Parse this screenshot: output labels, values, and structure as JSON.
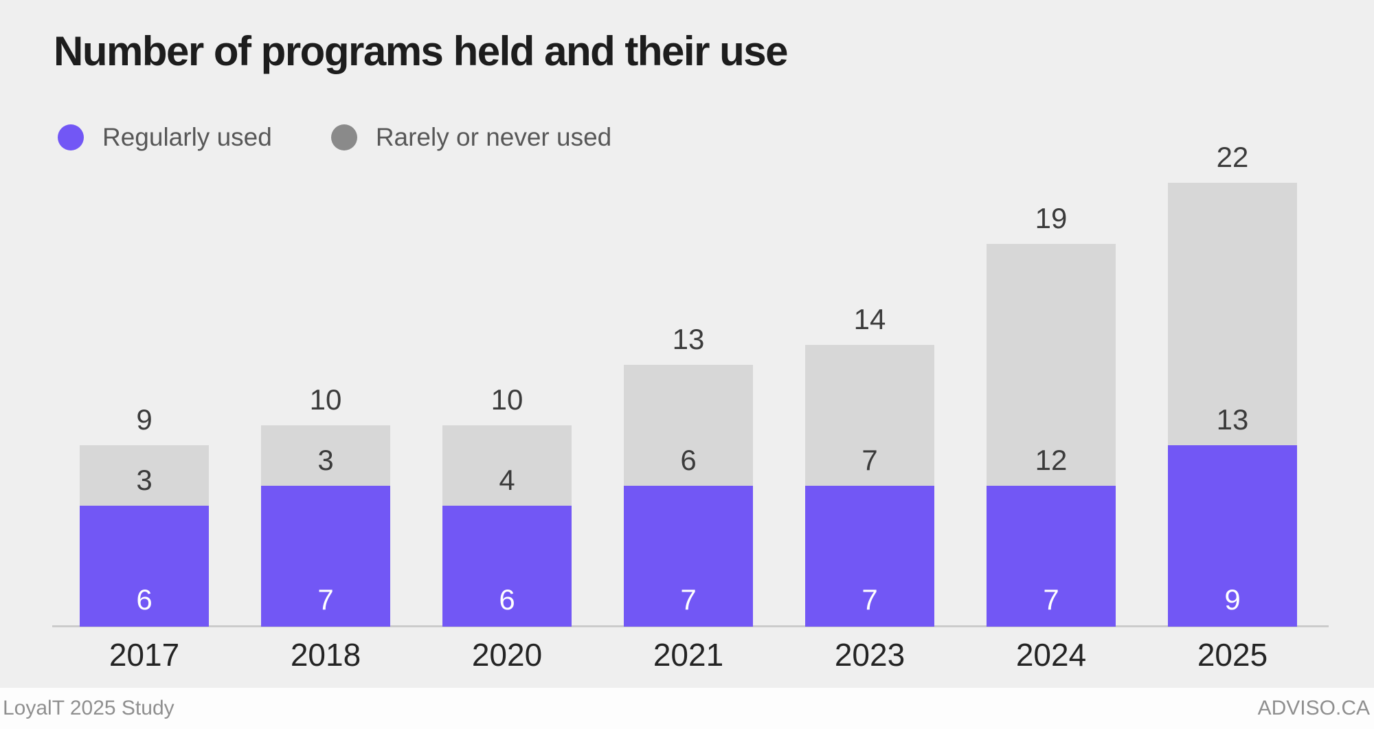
{
  "title": "Number of programs held and their use",
  "legend": {
    "items": [
      {
        "label": "Regularly used",
        "color": "#7257f5"
      },
      {
        "label": "Rarely or never used",
        "color": "#8a8a8a"
      }
    ]
  },
  "chart_data": {
    "type": "bar",
    "stacked": true,
    "title": "Number of programs held and their use",
    "categories": [
      "2017",
      "2018",
      "2020",
      "2021",
      "2023",
      "2024",
      "2025"
    ],
    "series": [
      {
        "name": "Regularly used",
        "color": "#7257f5",
        "values": [
          6,
          7,
          6,
          7,
          7,
          7,
          9
        ]
      },
      {
        "name": "Rarely or never used",
        "color": "#d7d7d7",
        "values": [
          3,
          3,
          4,
          6,
          7,
          12,
          13
        ]
      }
    ],
    "totals": [
      9,
      10,
      10,
      13,
      14,
      19,
      22
    ],
    "xlabel": "",
    "ylabel": "",
    "ylim": [
      0,
      22
    ],
    "grid": false,
    "legend_position": "top-left",
    "value_labels": "inside-segments-and-total-above"
  },
  "footer": {
    "left": "LoyalT 2025 Study",
    "right": "ADVISO.CA"
  },
  "colors": {
    "background": "#efefef",
    "axis_line": "#cbcbcb",
    "footer_background": "#fdfdfd",
    "footer_text": "#8f8f8f",
    "title_text": "#1d1d1d",
    "label_text": "#3b3b3b",
    "year_text": "#242424",
    "bar_regular": "#7257f5",
    "bar_rare": "#d7d7d7",
    "bar_value_text_light": "#ffffff"
  }
}
